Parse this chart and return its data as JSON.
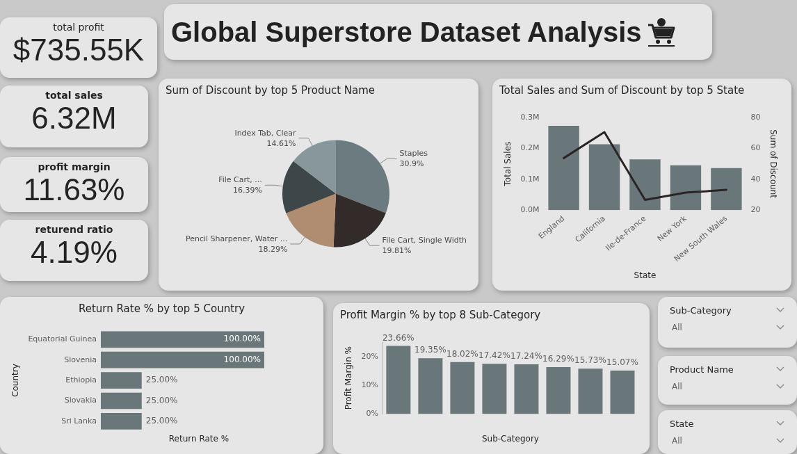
{
  "chart_data": [
    {
      "type": "other",
      "title": "Global Superstore Dataset Analysis"
    },
    {
      "type": "other",
      "annotations": [
        "total profit",
        "$735.55K",
        "total sales",
        "6.32M",
        "profit margin",
        "11.63%",
        "returend ratio",
        "4.19%"
      ]
    },
    {
      "type": "pie",
      "title": "Sum of Discount by top 5 Product Name",
      "categories": [
        "Staples",
        "File Cart, Single Width",
        "Pencil Sharpener, Water ...",
        "File Cart, ...",
        "Index Tab, Clear"
      ],
      "values": [
        30.9,
        19.81,
        18.29,
        16.39,
        14.61
      ],
      "colors": [
        "#6b7b7f",
        "#332a2a",
        "#b08c70",
        "#3d4649",
        "#87979b"
      ],
      "value_labels": [
        "30.9%",
        "19.81%",
        "18.29%",
        "16.39%",
        "14.61%"
      ]
    },
    {
      "type": "bar",
      "title": "Total Sales and Sum of Discount by top 5 State",
      "xlabel": "State",
      "ylabel": "Total Sales",
      "y2label": "Sum of Discount",
      "categories": [
        "England",
        "California",
        "Ile-de-France",
        "New York",
        "New South Wales"
      ],
      "series": [
        {
          "type": "bar",
          "color": "#6a777a",
          "values": [
            0.273,
            0.213,
            0.164,
            0.145,
            0.136
          ]
        },
        {
          "type": "line",
          "axis": "y2",
          "color": "#2b2424",
          "values": [
            53.7,
            70.5,
            26.6,
            31.3,
            33.1
          ]
        }
      ],
      "ylim": [
        0,
        0.3
      ],
      "yticks": [
        {
          "value": 0,
          "label": "0.0M"
        },
        {
          "value": 0.1,
          "label": "0.1M"
        },
        {
          "value": 0.2,
          "label": "0.2M"
        },
        {
          "value": 0.3,
          "label": "0.3M"
        }
      ],
      "y2lim": [
        20,
        80
      ],
      "y2ticks": [
        20,
        40,
        60,
        80
      ],
      "grid": false,
      "legend": false
    },
    {
      "type": "bar",
      "orientation": "horizontal",
      "title": "Return Rate % by top 5 Country",
      "xlabel": "Return Rate %",
      "ylabel": "Country",
      "categories": [
        "Equatorial Guinea",
        "Slovenia",
        "Ethiopia",
        "Slovakia",
        "Sri Lanka"
      ],
      "values": [
        100,
        100,
        25,
        25,
        25
      ],
      "value_labels": [
        "100.00%",
        "100.00%",
        "25.00%",
        "25.00%",
        "25.00%"
      ],
      "color": "#6a777a",
      "tick_labels": "y",
      "grid": false,
      "legend": false
    },
    {
      "type": "bar",
      "title": "Profit Margin % by top 8 Sub-Category",
      "xlabel": "Sub-Category",
      "ylabel": "Profit Margin %",
      "categories": [
        null,
        null,
        null,
        null,
        null,
        null,
        null,
        null
      ],
      "values": [
        23.66,
        19.35,
        18.02,
        17.42,
        17.24,
        16.29,
        15.73,
        15.07
      ],
      "value_labels": [
        "23.66%",
        "19.35%",
        "18.02%",
        "17.42%",
        "17.24%",
        "16.29%",
        "15.73%",
        "15.07%"
      ],
      "color": "#6a777a",
      "ylim": [
        0,
        25
      ],
      "yticks": [
        {
          "value": 0,
          "label": "0%"
        },
        {
          "value": 10,
          "label": "10%"
        },
        {
          "value": 20,
          "label": "20%"
        }
      ],
      "grid": false,
      "legend": false
    },
    {
      "type": "other",
      "annotations": [
        "Sub-Category",
        "All",
        "Product Name",
        "All",
        "State",
        "All"
      ]
    }
  ]
}
